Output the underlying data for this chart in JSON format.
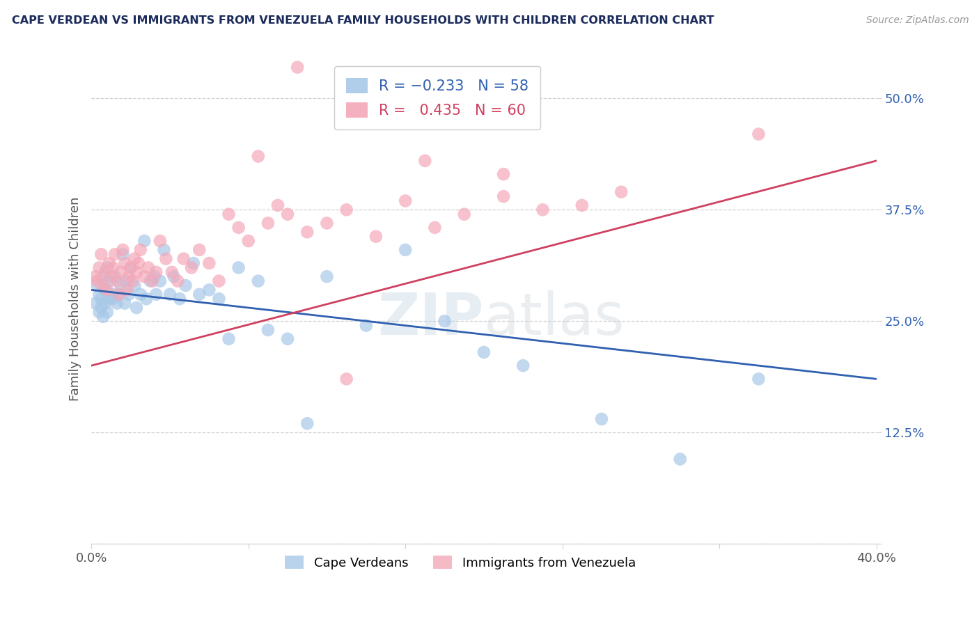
{
  "title": "CAPE VERDEAN VS IMMIGRANTS FROM VENEZUELA FAMILY HOUSEHOLDS WITH CHILDREN CORRELATION CHART",
  "source": "Source: ZipAtlas.com",
  "ylabel": "Family Households with Children",
  "xlim": [
    0.0,
    0.4
  ],
  "ylim": [
    0.0,
    0.55
  ],
  "yticks": [
    0.0,
    0.125,
    0.25,
    0.375,
    0.5
  ],
  "ytick_labels": [
    "",
    "12.5%",
    "25.0%",
    "37.5%",
    "50.0%"
  ],
  "xticks": [
    0.0,
    0.08,
    0.16,
    0.24,
    0.32,
    0.4
  ],
  "xtick_labels": [
    "0.0%",
    "",
    "",
    "",
    "",
    "40.0%"
  ],
  "watermark_zip": "ZIP",
  "watermark_atlas": "atlas",
  "legend_labels_bottom": [
    "Cape Verdeans",
    "Immigrants from Venezuela"
  ],
  "blue_color": "#a8c8e8",
  "pink_color": "#f4a8b8",
  "blue_line_color": "#3060b0",
  "pink_line_color": "#d04060",
  "grid_color": "#d0d0d0",
  "background_color": "#ffffff",
  "title_color": "#1a2a5a",
  "source_color": "#999999",
  "blue_x": [
    0.002,
    0.003,
    0.004,
    0.004,
    0.005,
    0.005,
    0.006,
    0.006,
    0.007,
    0.007,
    0.008,
    0.008,
    0.009,
    0.009,
    0.01,
    0.011,
    0.012,
    0.013,
    0.013,
    0.015,
    0.016,
    0.017,
    0.018,
    0.019,
    0.02,
    0.022,
    0.023,
    0.025,
    0.027,
    0.028,
    0.03,
    0.032,
    0.033,
    0.035,
    0.037,
    0.04,
    0.042,
    0.045,
    0.048,
    0.052,
    0.055,
    0.06,
    0.065,
    0.07,
    0.075,
    0.085,
    0.09,
    0.1,
    0.11,
    0.12,
    0.14,
    0.16,
    0.18,
    0.2,
    0.22,
    0.26,
    0.3,
    0.34
  ],
  "blue_y": [
    0.27,
    0.29,
    0.26,
    0.28,
    0.275,
    0.265,
    0.3,
    0.255,
    0.285,
    0.27,
    0.31,
    0.26,
    0.295,
    0.275,
    0.28,
    0.275,
    0.3,
    0.28,
    0.27,
    0.29,
    0.325,
    0.27,
    0.295,
    0.28,
    0.31,
    0.29,
    0.265,
    0.28,
    0.34,
    0.275,
    0.295,
    0.3,
    0.28,
    0.295,
    0.33,
    0.28,
    0.3,
    0.275,
    0.29,
    0.315,
    0.28,
    0.285,
    0.275,
    0.23,
    0.31,
    0.295,
    0.24,
    0.23,
    0.135,
    0.3,
    0.245,
    0.33,
    0.25,
    0.215,
    0.2,
    0.14,
    0.095,
    0.185
  ],
  "pink_x": [
    0.002,
    0.003,
    0.004,
    0.005,
    0.006,
    0.007,
    0.008,
    0.009,
    0.01,
    0.011,
    0.012,
    0.013,
    0.014,
    0.015,
    0.016,
    0.017,
    0.018,
    0.019,
    0.02,
    0.021,
    0.022,
    0.023,
    0.024,
    0.025,
    0.027,
    0.029,
    0.031,
    0.033,
    0.035,
    0.038,
    0.041,
    0.044,
    0.047,
    0.051,
    0.055,
    0.06,
    0.065,
    0.07,
    0.075,
    0.08,
    0.09,
    0.1,
    0.11,
    0.12,
    0.13,
    0.145,
    0.16,
    0.175,
    0.19,
    0.21,
    0.23,
    0.25,
    0.27,
    0.105,
    0.085,
    0.095,
    0.13,
    0.17,
    0.21,
    0.34
  ],
  "pink_y": [
    0.3,
    0.295,
    0.31,
    0.325,
    0.29,
    0.305,
    0.285,
    0.315,
    0.3,
    0.31,
    0.325,
    0.295,
    0.28,
    0.305,
    0.33,
    0.315,
    0.285,
    0.3,
    0.31,
    0.295,
    0.32,
    0.305,
    0.315,
    0.33,
    0.3,
    0.31,
    0.295,
    0.305,
    0.34,
    0.32,
    0.305,
    0.295,
    0.32,
    0.31,
    0.33,
    0.315,
    0.295,
    0.37,
    0.355,
    0.34,
    0.36,
    0.37,
    0.35,
    0.36,
    0.375,
    0.345,
    0.385,
    0.355,
    0.37,
    0.39,
    0.375,
    0.38,
    0.395,
    0.535,
    0.435,
    0.38,
    0.185,
    0.43,
    0.415,
    0.46
  ],
  "blue_line_x0": 0.0,
  "blue_line_x1": 0.4,
  "blue_line_y0": 0.285,
  "blue_line_y1": 0.185,
  "pink_line_x0": 0.0,
  "pink_line_x1": 0.4,
  "pink_line_y0": 0.2,
  "pink_line_y1": 0.43
}
